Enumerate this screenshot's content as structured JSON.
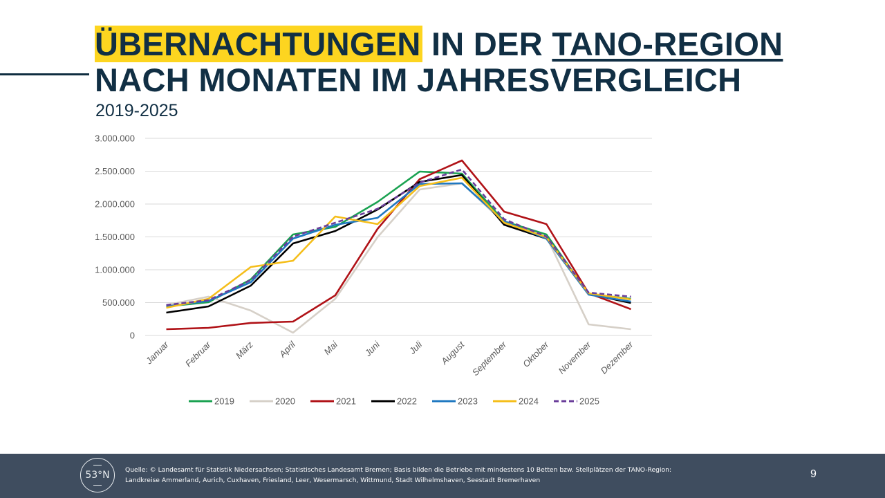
{
  "slide": {
    "title_highlight": "ÜBERNACHTUNGEN",
    "title_mid": " IN DER ",
    "title_underlined": "TANO-REGION",
    "title_line2": "NACH MONATEN IM JAHRESVERGLEICH",
    "subtitle": "2019-2025",
    "highlight_color": "#fdd520",
    "title_color": "#112f44"
  },
  "footer": {
    "logo_text": "53°N",
    "source_line1": "Quelle: © Landesamt für Statistik Niedersachsen; Statistisches Landesamt Bremen; Basis bilden die Betriebe mit mindestens 10 Betten bzw. Stellplätzen der TANO-Region:",
    "source_line2": "Landkreise Ammerland, Aurich, Cuxhaven, Friesland, Leer, Wesermarsch, Wittmund, Stadt Wilhelmshaven, Seestadt Bremerhaven",
    "page_number": "9",
    "background_color": "#3f4d5f"
  },
  "chart_data": {
    "type": "line",
    "title": "",
    "xlabel": "",
    "ylabel": "",
    "categories": [
      "Januar",
      "Februar",
      "März",
      "April",
      "Mai",
      "Juni",
      "Juli",
      "August",
      "September",
      "Oktober",
      "November",
      "Dezember"
    ],
    "ylim": [
      0,
      3000000
    ],
    "yticks": [
      0,
      500000,
      1000000,
      1500000,
      2000000,
      2500000,
      3000000
    ],
    "ytick_labels": [
      "0",
      "500.000",
      "1.000.000",
      "1.500.000",
      "2.000.000",
      "2.500.000",
      "3.000.000"
    ],
    "grid": true,
    "legend_position": "bottom",
    "series": [
      {
        "name": "2019",
        "color": "#1aa251",
        "dashed": false,
        "values": [
          442000,
          505000,
          853000,
          1537000,
          1653000,
          2032000,
          2495000,
          2463000,
          1737000,
          1537000,
          632000,
          558000
        ]
      },
      {
        "name": "2020",
        "color": "#d6d0c8",
        "dashed": false,
        "values": [
          463000,
          590000,
          379000,
          42000,
          558000,
          1495000,
          2221000,
          2316000,
          1716000,
          1505000,
          168000,
          95000
        ]
      },
      {
        "name": "2021",
        "color": "#b01217",
        "dashed": false,
        "values": [
          95000,
          116000,
          190000,
          211000,
          611000,
          1621000,
          2379000,
          2663000,
          1884000,
          1695000,
          642000,
          400000
        ]
      },
      {
        "name": "2022",
        "color": "#000000",
        "dashed": false,
        "values": [
          347000,
          442000,
          758000,
          1400000,
          1589000,
          1916000,
          2337000,
          2442000,
          1684000,
          1474000,
          632000,
          495000
        ]
      },
      {
        "name": "2023",
        "color": "#1f78c1",
        "dashed": false,
        "values": [
          442000,
          526000,
          810000,
          1474000,
          1684000,
          1789000,
          2305000,
          2316000,
          1737000,
          1474000,
          621000,
          516000
        ]
      },
      {
        "name": "2024",
        "color": "#f5be1a",
        "dashed": false,
        "values": [
          421000,
          558000,
          1042000,
          1137000,
          1811000,
          1695000,
          2274000,
          2400000,
          1716000,
          1495000,
          642000,
          547000
        ]
      },
      {
        "name": "2025",
        "color": "#6a3d9a",
        "dashed": true,
        "values": [
          463000,
          537000,
          842000,
          1505000,
          1716000,
          1926000,
          2326000,
          2526000,
          1768000,
          1505000,
          653000,
          590000
        ]
      }
    ]
  }
}
